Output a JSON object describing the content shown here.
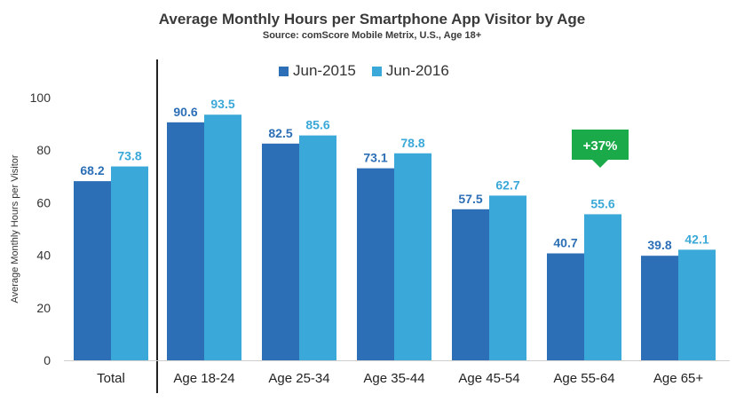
{
  "chart_data": {
    "type": "bar",
    "title": "Average Monthly Hours per Smartphone App Visitor by Age",
    "subtitle": "Source: comScore Mobile Metrix, U.S., Age 18+",
    "xlabel": "",
    "ylabel": "Average Monthly Hours per Visitor",
    "ylim": [
      0,
      100
    ],
    "yticks": [
      0,
      20,
      40,
      60,
      80,
      100
    ],
    "grid": false,
    "legend_position": "top-center",
    "categories": [
      "Total",
      "Age 18-24",
      "Age 25-34",
      "Age 35-44",
      "Age 45-54",
      "Age 55-64",
      "Age 65+"
    ],
    "series": [
      {
        "name": "Jun-2015",
        "color": "#2c6fb7",
        "label_color": "#2c6fb7",
        "values": [
          68.2,
          90.6,
          82.5,
          73.1,
          57.5,
          40.7,
          39.8
        ],
        "labels": [
          "68.2",
          "90.6",
          "82.5",
          "73.1",
          "57.5",
          "40.7",
          "39.8"
        ]
      },
      {
        "name": "Jun-2016",
        "color": "#3aa8d8",
        "label_color": "#3aa8d8",
        "values": [
          73.8,
          93.5,
          85.6,
          78.8,
          62.7,
          55.6,
          42.1
        ],
        "labels": [
          "73.8",
          "93.5",
          "85.6",
          "78.8",
          "62.7",
          "55.6",
          "42.1"
        ]
      }
    ],
    "annotations": [
      {
        "text": "+37%",
        "category": "Age 55-64",
        "color": "#1aaa4a"
      }
    ]
  }
}
